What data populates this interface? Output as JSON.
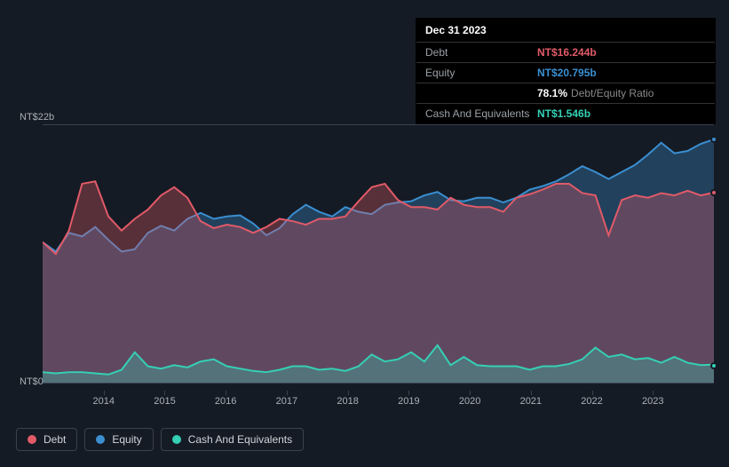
{
  "tooltip": {
    "date": "Dec 31 2023",
    "rows": [
      {
        "label": "Debt",
        "value": "NT$16.244b",
        "color": "#e15a68"
      },
      {
        "label": "Equity",
        "value": "NT$20.795b",
        "color": "#3b8fd1"
      },
      {
        "label": "",
        "value": "78.1%",
        "sub": "Debt/Equity Ratio",
        "color": "#ffffff"
      },
      {
        "label": "Cash And Equivalents",
        "value": "NT$1.546b",
        "color": "#35d0b5"
      }
    ]
  },
  "chart": {
    "type": "area",
    "background_color": "#151b24",
    "grid_color": "#3a4250",
    "y_axis": {
      "min": 0,
      "max": 22,
      "label_top": "NT$22b",
      "label_bot": "NT$0",
      "label_fontsize": 11,
      "label_color": "#aab0b6"
    },
    "x_axis": {
      "labels": [
        "2014",
        "2015",
        "2016",
        "2017",
        "2018",
        "2019",
        "2020",
        "2021",
        "2022",
        "2023"
      ],
      "label_fontsize": 11,
      "label_color": "#aab0b6"
    },
    "series": [
      {
        "name": "Debt",
        "color": "#e15a68",
        "fill_opacity": 0.33,
        "line_width": 2,
        "values": [
          12.0,
          11.0,
          13.0,
          17.0,
          17.2,
          14.2,
          13.0,
          14.0,
          14.8,
          16.0,
          16.7,
          15.8,
          13.8,
          13.2,
          13.5,
          13.3,
          12.8,
          13.3,
          14.0,
          13.8,
          13.5,
          14.0,
          14.0,
          14.2,
          15.5,
          16.7,
          17.0,
          15.6,
          15.0,
          15.0,
          14.8,
          15.8,
          15.2,
          15.0,
          15.0,
          14.6,
          15.8,
          16.1,
          16.5,
          17.0,
          17.0,
          16.2,
          16.0,
          12.6,
          15.6,
          16.0,
          15.8,
          16.2,
          16.0,
          16.4,
          16.0,
          16.244
        ]
      },
      {
        "name": "Equity",
        "color": "#3b8fd1",
        "fill_opacity": 0.33,
        "line_width": 2,
        "values": [
          12.0,
          11.2,
          12.8,
          12.5,
          13.3,
          12.2,
          11.2,
          11.4,
          12.8,
          13.4,
          13.0,
          14.0,
          14.5,
          14.0,
          14.2,
          14.3,
          13.6,
          12.6,
          13.2,
          14.4,
          15.2,
          14.6,
          14.2,
          15.0,
          14.6,
          14.4,
          15.2,
          15.4,
          15.5,
          16.0,
          16.3,
          15.6,
          15.5,
          15.8,
          15.8,
          15.4,
          15.8,
          16.5,
          16.8,
          17.2,
          17.8,
          18.5,
          18.0,
          17.4,
          18.0,
          18.6,
          19.5,
          20.5,
          19.6,
          19.8,
          20.4,
          20.795
        ]
      },
      {
        "name": "Cash And Equivalents",
        "color": "#35d0b5",
        "fill_opacity": 0.3,
        "line_width": 2,
        "values": [
          0.9,
          0.8,
          0.9,
          0.9,
          0.8,
          0.7,
          1.1,
          2.6,
          1.4,
          1.2,
          1.5,
          1.3,
          1.8,
          2.0,
          1.4,
          1.2,
          1.0,
          0.9,
          1.1,
          1.4,
          1.4,
          1.1,
          1.2,
          1.0,
          1.4,
          2.4,
          1.8,
          2.0,
          2.6,
          1.8,
          3.2,
          1.5,
          2.2,
          1.5,
          1.4,
          1.4,
          1.4,
          1.1,
          1.4,
          1.4,
          1.6,
          2.0,
          3.0,
          2.2,
          2.4,
          2.0,
          2.1,
          1.7,
          2.2,
          1.7,
          1.5,
          1.546
        ]
      }
    ]
  },
  "legend": {
    "items": [
      {
        "label": "Debt",
        "color": "#e15a68"
      },
      {
        "label": "Equity",
        "color": "#3b8fd1"
      },
      {
        "label": "Cash And Equivalents",
        "color": "#35d0b5"
      }
    ],
    "fontsize": 12,
    "border_color": "#3a4250"
  }
}
